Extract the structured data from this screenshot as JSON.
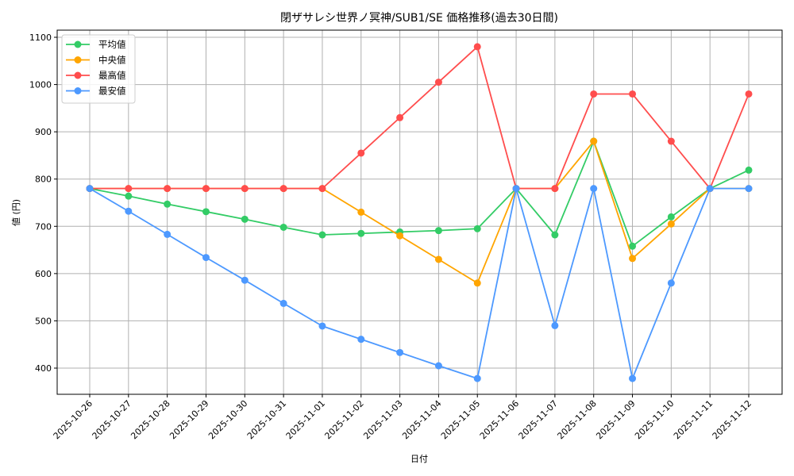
{
  "chart_data": {
    "type": "line",
    "title": "閉ザサレシ世界ノ冥神/SUB1/SE 価格推移(過去30日間)",
    "xlabel": "日付",
    "ylabel": "値 (円)",
    "ylim": [
      345,
      1115
    ],
    "yticks": [
      400,
      500,
      600,
      700,
      800,
      900,
      1000,
      1100
    ],
    "grid": true,
    "legend_position": "upper left",
    "categories": [
      "2025-10-26",
      "2025-10-27",
      "2025-10-28",
      "2025-10-29",
      "2025-10-30",
      "2025-10-31",
      "2025-11-01",
      "2025-11-02",
      "2025-11-03",
      "2025-11-04",
      "2025-11-05",
      "2025-11-06",
      "2025-11-07",
      "2025-11-08",
      "2025-11-09",
      "2025-11-10",
      "2025-11-11",
      "2025-11-12"
    ],
    "series": [
      {
        "name": "平均値",
        "color": "#33cc66",
        "values": [
          780,
          764,
          747,
          731,
          715,
          698,
          682,
          685,
          688,
          691,
          695,
          780,
          682,
          880,
          658,
          720,
          780,
          819
        ]
      },
      {
        "name": "中央値",
        "color": "#ffa500",
        "values": [
          780,
          780,
          780,
          780,
          780,
          780,
          780,
          730,
          680,
          630,
          580,
          780,
          780,
          880,
          632,
          705,
          780,
          780
        ]
      },
      {
        "name": "最高値",
        "color": "#ff4d4d",
        "values": [
          780,
          780,
          780,
          780,
          780,
          780,
          780,
          855,
          930,
          1005,
          1080,
          780,
          780,
          980,
          980,
          880,
          780,
          980
        ]
      },
      {
        "name": "最安値",
        "color": "#4d99ff",
        "values": [
          780,
          732,
          683,
          634,
          586,
          537,
          489,
          461,
          433,
          405,
          378,
          780,
          490,
          780,
          378,
          580,
          780,
          780
        ]
      }
    ]
  }
}
